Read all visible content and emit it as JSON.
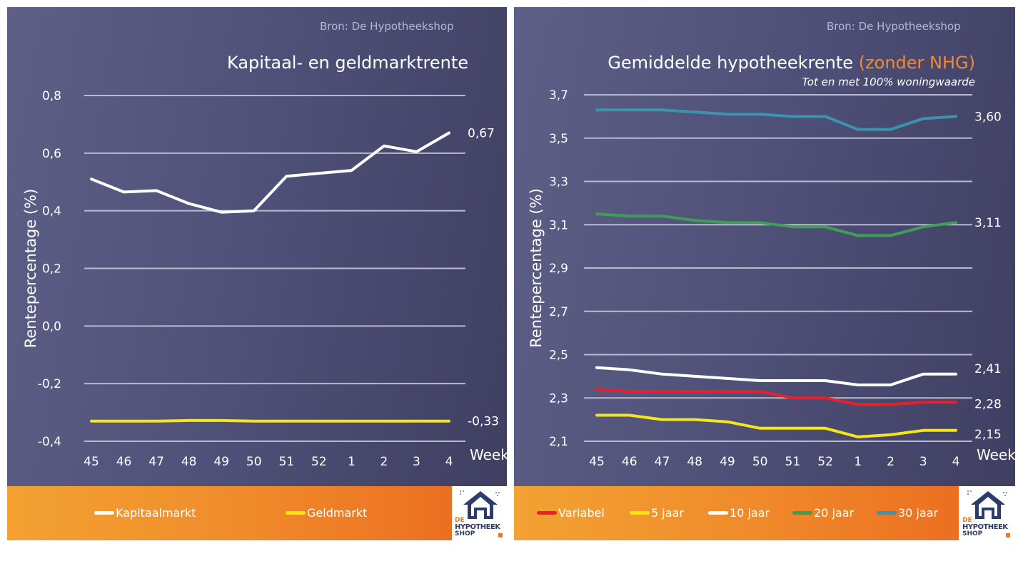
{
  "chart_data": [
    {
      "type": "line",
      "source": "Bron: De Hypotheekshop",
      "title": "Kapitaal- en geldmarktrente",
      "ylabel": "Rentepercentage (%)",
      "xlabel": "Week",
      "categories": [
        "45",
        "46",
        "47",
        "48",
        "49",
        "50",
        "51",
        "52",
        "1",
        "2",
        "3",
        "4"
      ],
      "ylim": [
        -0.4,
        0.8
      ],
      "yticks": [
        "0,8",
        "0,6",
        "0,4",
        "0,2",
        "0,0",
        "-0,2",
        "-0,4"
      ],
      "ytick_values": [
        0.8,
        0.6,
        0.4,
        0.2,
        0.0,
        -0.2,
        -0.4
      ],
      "grid": true,
      "legend": "bottom",
      "series": [
        {
          "name": "Kapitaalmarkt",
          "color": "#ffffff",
          "values": [
            0.51,
            0.465,
            0.47,
            0.425,
            0.395,
            0.4,
            0.52,
            0.53,
            0.54,
            0.625,
            0.605,
            0.67
          ],
          "end_label": "0,67"
        },
        {
          "name": "Geldmarkt",
          "color": "#f5e616",
          "values": [
            -0.33,
            -0.33,
            -0.33,
            -0.328,
            -0.328,
            -0.33,
            -0.33,
            -0.33,
            -0.33,
            -0.33,
            -0.33,
            -0.33
          ],
          "end_label": "-0,33"
        }
      ]
    },
    {
      "type": "line",
      "source": "Bron: De Hypotheekshop",
      "title": "Gemiddelde hypotheekrente",
      "title_highlight": "(zonder NHG)",
      "subtitle": "Tot en met 100% woningwaarde",
      "ylabel": "Rentepercentage (%)",
      "xlabel": "Week",
      "categories": [
        "45",
        "46",
        "47",
        "48",
        "49",
        "50",
        "51",
        "52",
        "1",
        "2",
        "3",
        "4"
      ],
      "ylim": [
        2.1,
        3.7
      ],
      "yticks": [
        "3,7",
        "3,5",
        "3,3",
        "3,1",
        "2,9",
        "2,7",
        "2,5",
        "2,3",
        "2,1"
      ],
      "ytick_values": [
        3.7,
        3.5,
        3.3,
        3.1,
        2.9,
        2.7,
        2.5,
        2.3,
        2.1
      ],
      "grid": true,
      "legend": "bottom",
      "series": [
        {
          "name": "Variabel",
          "color": "#e8202a",
          "values": [
            2.34,
            2.33,
            2.33,
            2.33,
            2.33,
            2.33,
            2.3,
            2.3,
            2.27,
            2.27,
            2.28,
            2.28
          ],
          "end_label": "2,28"
        },
        {
          "name": "5 jaar",
          "color": "#f5e616",
          "values": [
            2.22,
            2.22,
            2.2,
            2.2,
            2.19,
            2.16,
            2.16,
            2.16,
            2.12,
            2.13,
            2.15,
            2.15
          ],
          "end_label": "2,15"
        },
        {
          "name": "10 jaar",
          "color": "#ffffff",
          "values": [
            2.44,
            2.43,
            2.41,
            2.4,
            2.39,
            2.38,
            2.38,
            2.38,
            2.36,
            2.36,
            2.41,
            2.41
          ],
          "end_label": "2,41"
        },
        {
          "name": "20 jaar",
          "color": "#3f9e55",
          "values": [
            3.15,
            3.14,
            3.14,
            3.12,
            3.11,
            3.11,
            3.09,
            3.09,
            3.05,
            3.05,
            3.09,
            3.11
          ],
          "end_label": "3,11"
        },
        {
          "name": "30 jaar",
          "color": "#3d93ae",
          "values": [
            3.63,
            3.63,
            3.63,
            3.62,
            3.61,
            3.61,
            3.6,
            3.6,
            3.54,
            3.54,
            3.59,
            3.6
          ],
          "end_label": "3,60"
        }
      ]
    }
  ],
  "logo": {
    "line1": "DE",
    "line2": "HYPOTHEEK",
    "line3": "SHOP"
  }
}
